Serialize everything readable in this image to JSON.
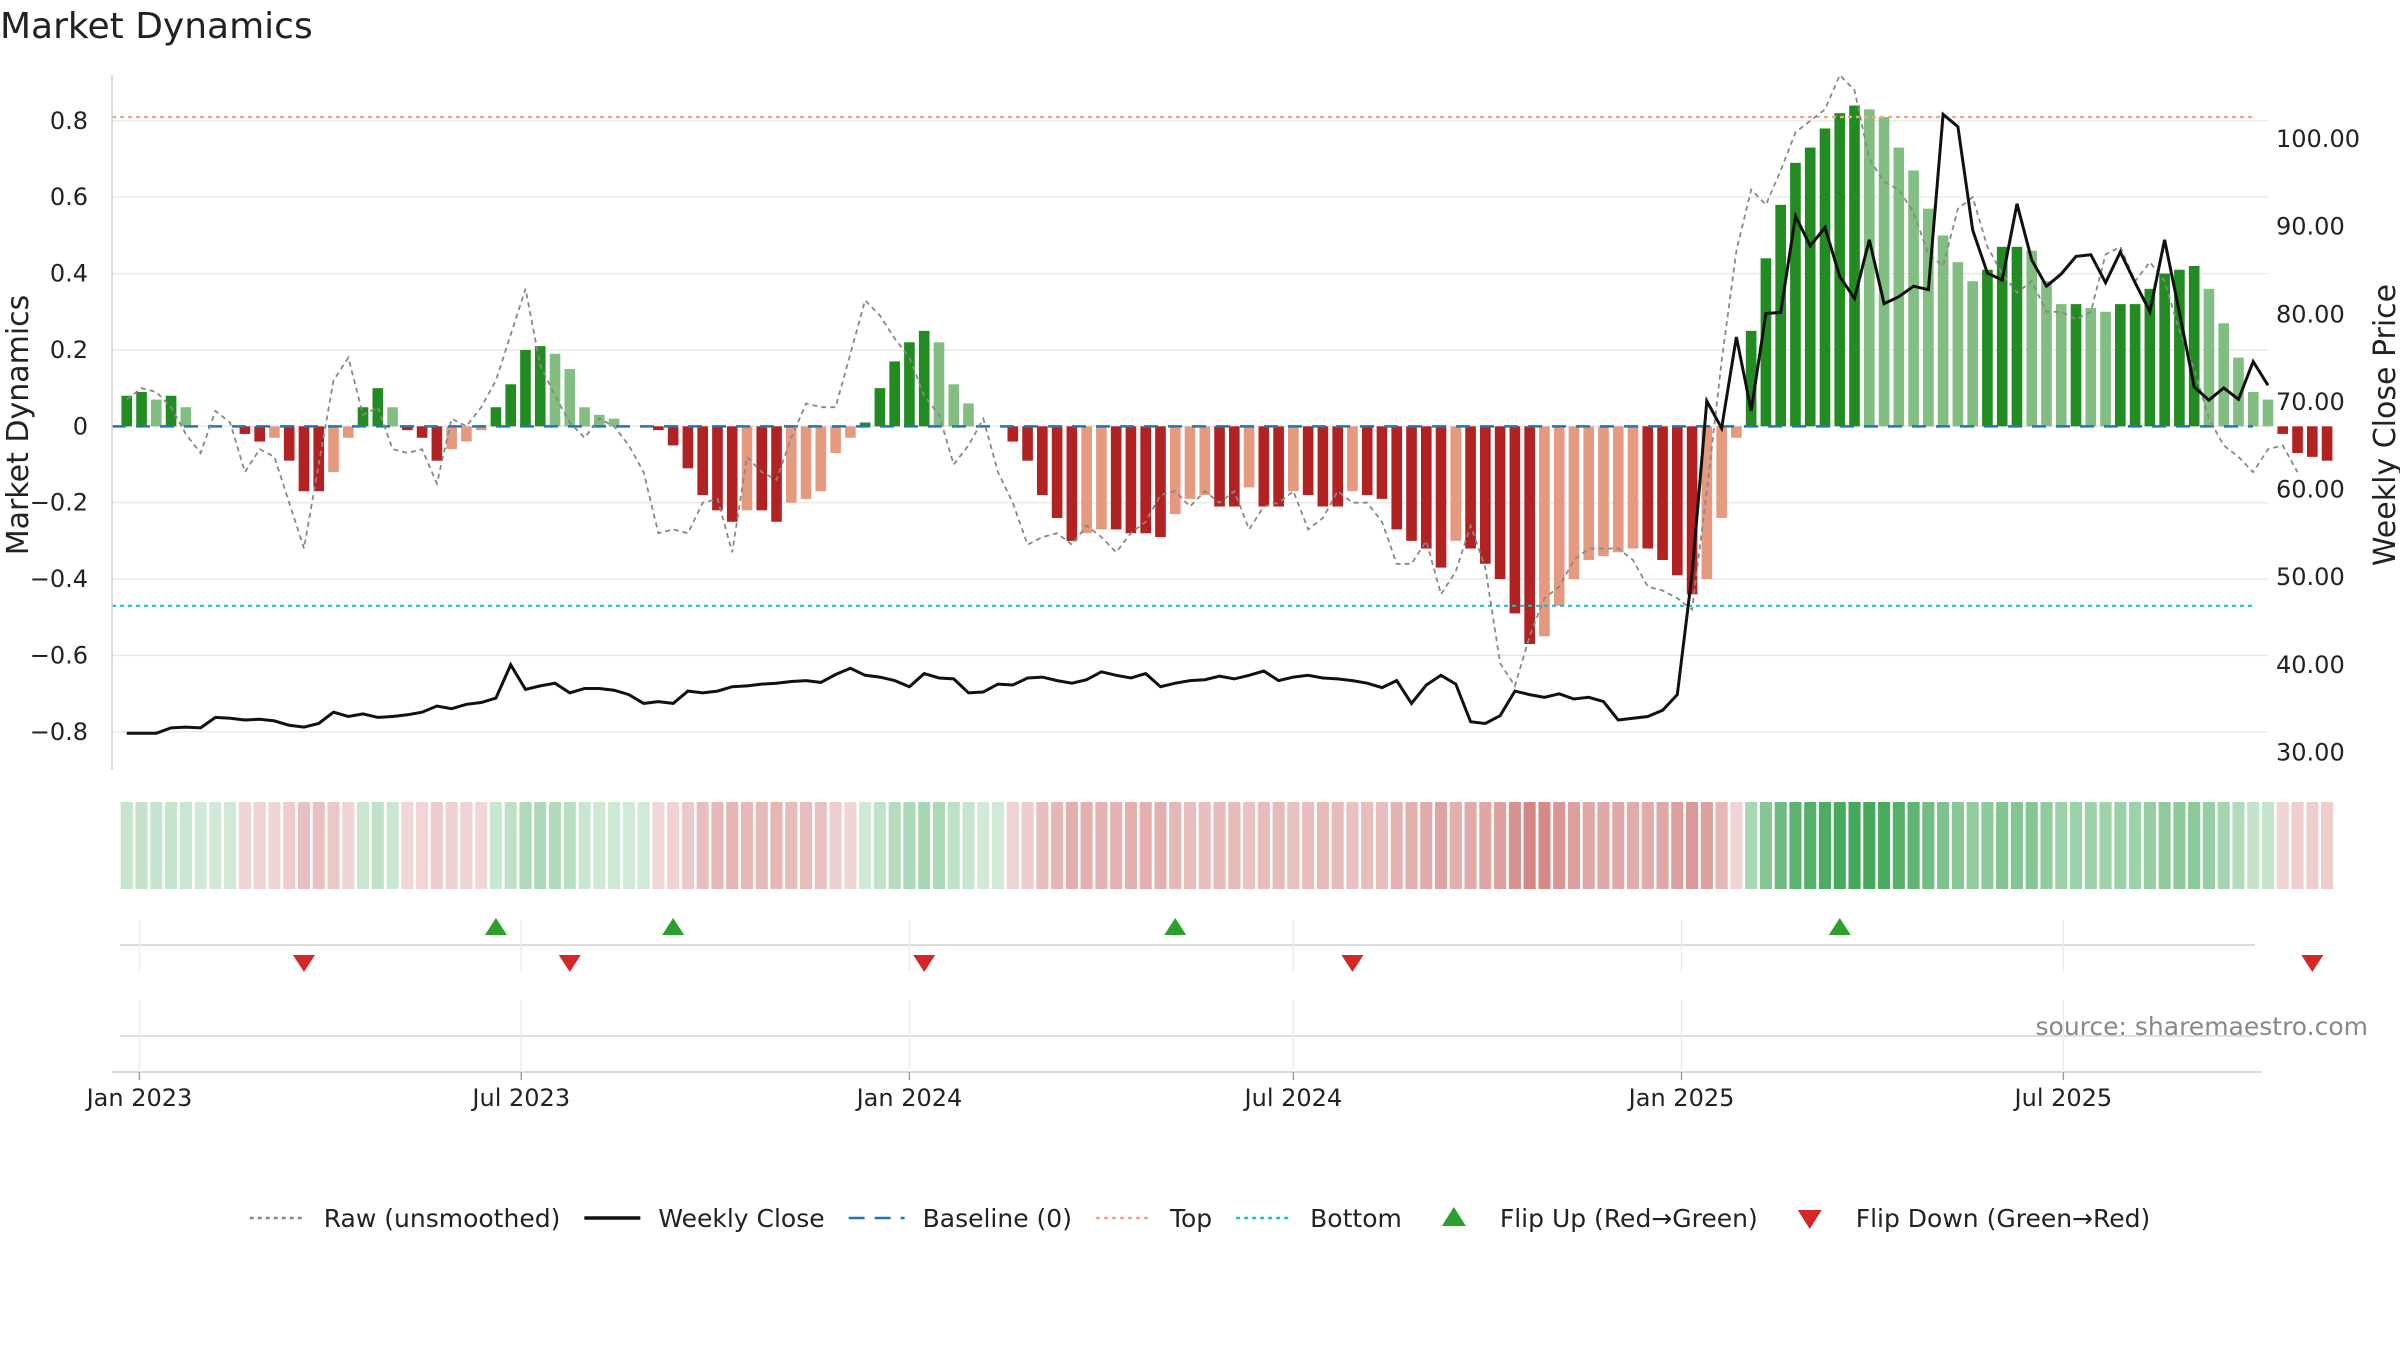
{
  "chart_data": {
    "type": "bar",
    "title": "Market Dynamics",
    "ylabel_left": "Market Dynamics",
    "ylabel_right": "Weekly Close Price",
    "source": "source: sharemaestro.com",
    "x_range": [
      "2022-12-19",
      "2025-10-06"
    ],
    "ylim_left": [
      -0.9,
      0.92
    ],
    "ylim_right": [
      28.0,
      107.3
    ],
    "yticks_left": [
      -0.8,
      -0.6,
      -0.4,
      -0.2,
      0,
      0.2,
      0.4,
      0.6,
      0.8
    ],
    "yticks_left_labels": [
      "−0.8",
      "−0.6",
      "−0.4",
      "−0.2",
      "0",
      "0.2",
      "0.4",
      "0.6",
      "0.8"
    ],
    "yticks_right": [
      30,
      40,
      50,
      60,
      70,
      80,
      90,
      100
    ],
    "yticks_right_labels": [
      "30.00",
      "40.00",
      "50.00",
      "60.00",
      "70.00",
      "80.00",
      "90.00",
      "100.00"
    ],
    "x_ticks": [
      {
        "date": "2023-01-01",
        "label": "Jan 2023"
      },
      {
        "date": "2023-07-01",
        "label": "Jul 2023"
      },
      {
        "date": "2024-01-01",
        "label": "Jan 2024"
      },
      {
        "date": "2024-07-01",
        "label": "Jul 2024"
      },
      {
        "date": "2025-01-01",
        "label": "Jan 2025"
      },
      {
        "date": "2025-07-01",
        "label": "Jul 2025"
      }
    ],
    "start_date": "2022-12-26",
    "week_step_days": 7,
    "top_level": 0.81,
    "bottom_level": -0.47,
    "baseline": 0,
    "colors": {
      "green_strong": "#228b22",
      "green_light": "#82be82",
      "red_strong": "#b22222",
      "red_light": "#e59a80",
      "raw": "#888888",
      "close": "#111111",
      "baseline": "#1f77b4",
      "top": "#f4a582",
      "bottom": "#17becf",
      "flip_up": "#2ca02c",
      "flip_down": "#d62728",
      "grid": "#e8e8e8"
    },
    "series": [
      {
        "name": "Market Dynamics",
        "values": [
          0.08,
          0.09,
          0.07,
          0.08,
          0.05,
          0,
          0,
          0,
          -0.02,
          -0.04,
          -0.03,
          -0.09,
          -0.17,
          -0.17,
          -0.12,
          -0.03,
          0.05,
          0.1,
          0.05,
          -0.01,
          -0.03,
          -0.09,
          -0.06,
          -0.04,
          -0.01,
          0.05,
          0.11,
          0.2,
          0.21,
          0.19,
          0.15,
          0.05,
          0.03,
          0.02,
          0,
          0,
          -0.01,
          -0.05,
          -0.11,
          -0.18,
          -0.22,
          -0.25,
          -0.22,
          -0.22,
          -0.25,
          -0.2,
          -0.19,
          -0.17,
          -0.07,
          -0.03,
          0.01,
          0.1,
          0.17,
          0.22,
          0.25,
          0.22,
          0.11,
          0.06,
          0,
          0,
          -0.04,
          -0.09,
          -0.18,
          -0.24,
          -0.3,
          -0.28,
          -0.27,
          -0.27,
          -0.28,
          -0.28,
          -0.29,
          -0.23,
          -0.19,
          -0.18,
          -0.21,
          -0.21,
          -0.16,
          -0.21,
          -0.21,
          -0.17,
          -0.18,
          -0.21,
          -0.21,
          -0.17,
          -0.18,
          -0.19,
          -0.27,
          -0.3,
          -0.32,
          -0.37,
          -0.3,
          -0.32,
          -0.36,
          -0.4,
          -0.49,
          -0.57,
          -0.55,
          -0.47,
          -0.4,
          -0.35,
          -0.34,
          -0.33,
          -0.32,
          -0.32,
          -0.35,
          -0.39,
          -0.44,
          -0.4,
          -0.24,
          -0.03,
          0.25,
          0.44,
          0.58,
          0.69,
          0.73,
          0.78,
          0.82,
          0.84,
          0.83,
          0.81,
          0.73,
          0.67,
          0.57,
          0.5,
          0.43,
          0.38,
          0.41,
          0.47,
          0.47,
          0.46,
          0.38,
          0.32,
          0.32,
          0.31,
          0.3,
          0.32,
          0.32,
          0.36,
          0.4,
          0.41,
          0.42,
          0.36,
          0.27,
          0.18,
          0.09,
          0.07,
          -0.02,
          -0.07,
          -0.08,
          -0.09
        ]
      },
      {
        "name": "Raw (unsmoothed)",
        "values": [
          0.07,
          0.1,
          0.09,
          0.05,
          -0.02,
          -0.07,
          0.04,
          0.01,
          -0.12,
          -0.06,
          -0.08,
          -0.2,
          -0.32,
          -0.1,
          0.12,
          0.18,
          0.03,
          0.05,
          -0.06,
          -0.07,
          -0.06,
          -0.15,
          0.02,
          0,
          0.05,
          0.12,
          0.24,
          0.36,
          0.16,
          0.08,
          0.01,
          -0.03,
          0.02,
          0,
          -0.05,
          -0.12,
          -0.28,
          -0.27,
          -0.28,
          -0.2,
          -0.19,
          -0.33,
          -0.08,
          -0.12,
          -0.14,
          -0.03,
          0.06,
          0.05,
          0.05,
          0.19,
          0.33,
          0.29,
          0.23,
          0.18,
          0.08,
          0.03,
          -0.1,
          -0.05,
          0.02,
          -0.12,
          -0.2,
          -0.31,
          -0.29,
          -0.28,
          -0.31,
          -0.26,
          -0.29,
          -0.33,
          -0.28,
          -0.25,
          -0.18,
          -0.17,
          -0.21,
          -0.17,
          -0.2,
          -0.17,
          -0.27,
          -0.21,
          -0.2,
          -0.17,
          -0.27,
          -0.24,
          -0.17,
          -0.2,
          -0.2,
          -0.25,
          -0.36,
          -0.36,
          -0.3,
          -0.44,
          -0.38,
          -0.26,
          -0.37,
          -0.62,
          -0.68,
          -0.55,
          -0.45,
          -0.42,
          -0.35,
          -0.32,
          -0.32,
          -0.32,
          -0.35,
          -0.42,
          -0.43,
          -0.45,
          -0.48,
          -0.17,
          0.17,
          0.46,
          0.62,
          0.58,
          0.67,
          0.77,
          0.8,
          0.83,
          0.92,
          0.88,
          0.7,
          0.64,
          0.62,
          0.56,
          0.45,
          0.42,
          0.57,
          0.6,
          0.47,
          0.4,
          0.35,
          0.38,
          0.3,
          0.3,
          0.28,
          0.3,
          0.45,
          0.47,
          0.38,
          0.43,
          0.38,
          0.25,
          0.15,
          0.02,
          -0.05,
          -0.08,
          -0.12,
          -0.06,
          -0.05,
          -0.12
        ]
      },
      {
        "name": "Weekly Close",
        "values": [
          32.2,
          32.2,
          32.2,
          32.8,
          32.9,
          32.8,
          34.0,
          33.9,
          33.7,
          33.8,
          33.6,
          33.1,
          32.9,
          33.3,
          34.6,
          34.1,
          34.4,
          34.0,
          34.1,
          34.3,
          34.6,
          35.3,
          35.0,
          35.5,
          35.7,
          36.2,
          40.0,
          37.2,
          37.6,
          37.9,
          36.8,
          37.3,
          37.3,
          37.1,
          36.6,
          35.6,
          35.8,
          35.6,
          37.0,
          36.8,
          37.0,
          37.5,
          37.6,
          37.8,
          37.9,
          38.1,
          38.2,
          38.0,
          38.9,
          39.6,
          38.8,
          38.6,
          38.2,
          37.5,
          39.0,
          38.5,
          38.4,
          36.8,
          36.9,
          37.8,
          37.7,
          38.5,
          38.6,
          38.2,
          37.9,
          38.3,
          39.2,
          38.8,
          38.5,
          39.0,
          37.5,
          37.9,
          38.2,
          38.3,
          38.7,
          38.4,
          38.8,
          39.3,
          38.2,
          38.6,
          38.8,
          38.5,
          38.4,
          38.2,
          37.9,
          37.4,
          38.2,
          35.6,
          37.7,
          38.8,
          37.8,
          33.5,
          33.3,
          34.2,
          37.0,
          36.6,
          36.3,
          36.7,
          36.1,
          36.3,
          35.8,
          33.7,
          33.9,
          34.1,
          34.8,
          36.6,
          50.4,
          70.1,
          67.0,
          77.4,
          69.0,
          80.1,
          80.2,
          91.2,
          87.8,
          89.9,
          84.3,
          81.8,
          88.5,
          81.2,
          82.0,
          83.2,
          82.8,
          102.8,
          101.4,
          89.6,
          84.7,
          83.9,
          92.6,
          86.2,
          83.2,
          84.6,
          86.6,
          86.8,
          83.6,
          87.1,
          83.6,
          80.3,
          88.5,
          80.2,
          71.7,
          70.2,
          71.6,
          70.3,
          74.6,
          71.9
        ]
      }
    ],
    "flips": [
      {
        "week": 12,
        "direction": "down"
      },
      {
        "week": 25,
        "direction": "up"
      },
      {
        "week": 30,
        "direction": "down"
      },
      {
        "week": 37,
        "direction": "up"
      },
      {
        "week": 54,
        "direction": "down"
      },
      {
        "week": 71,
        "direction": "up"
      },
      {
        "week": 83,
        "direction": "down"
      },
      {
        "week": 116,
        "direction": "up"
      },
      {
        "week": 148,
        "direction": "down"
      }
    ],
    "legend": [
      {
        "label": "Raw (unsmoothed)",
        "style": "dotted",
        "color": "#888888"
      },
      {
        "label": "Weekly Close",
        "style": "solid",
        "color": "#111111"
      },
      {
        "label": "Baseline (0)",
        "style": "dashed",
        "color": "#1f77b4"
      },
      {
        "label": "Top",
        "style": "dotted",
        "color": "#f4a582"
      },
      {
        "label": "Bottom",
        "style": "dotted",
        "color": "#17becf"
      },
      {
        "label": "Flip Up (Red→Green)",
        "style": "tri-up",
        "color": "#2ca02c"
      },
      {
        "label": "Flip Down (Green→Red)",
        "style": "tri-down",
        "color": "#d62728"
      }
    ],
    "legend_position": "bottom-center",
    "grid": true
  }
}
